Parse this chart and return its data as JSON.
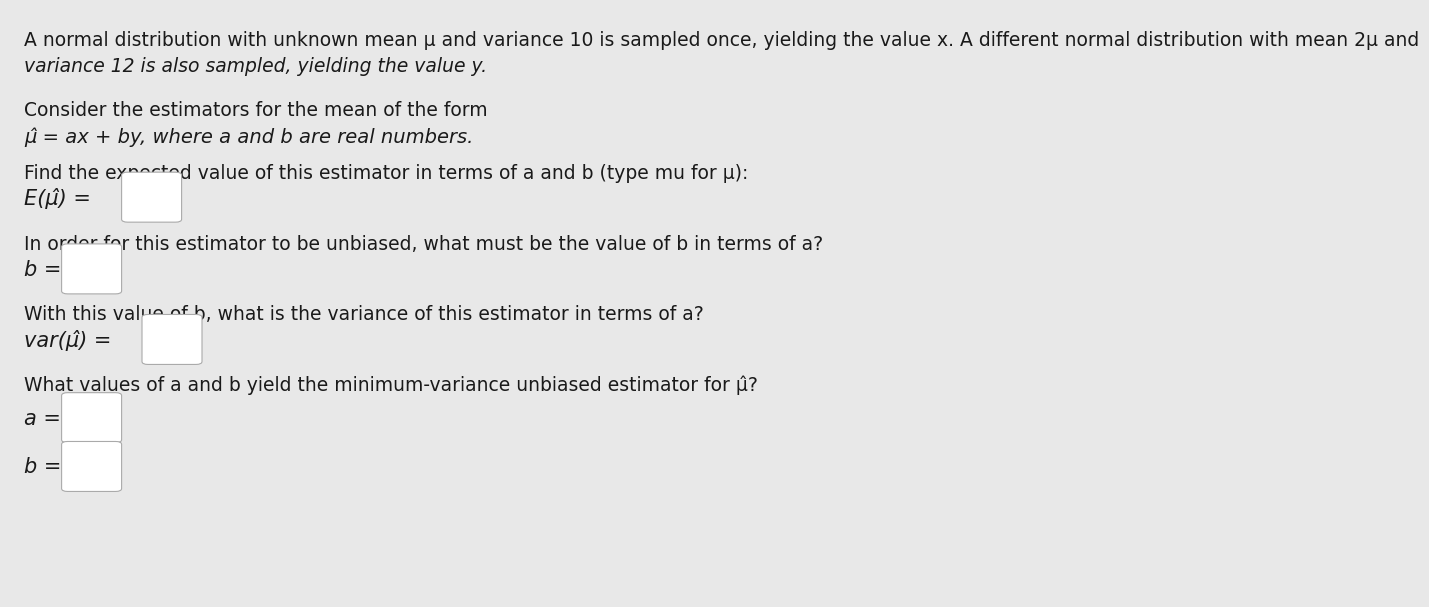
{
  "background_color": "#e8e8e8",
  "text_color": "#1a1a1a",
  "title_line1": "A normal distribution with unknown mean μ and variance 10 is sampled once, yielding the value x. A different normal distribution with mean 2μ and",
  "title_line2": "variance 12 is also sampled, yielding the value y.",
  "para1_line1": "Consider the estimators for the mean of the form",
  "para1_line2": "μ̂ = ax + by, where a and b are real numbers.",
  "para2_line1": "Find the expected value of this estimator in terms of a and b (type mu for μ):",
  "eq1_label": "E(μ̂) =",
  "para3_line1": "In order for this estimator to be unbiased, what must be the value of b in terms of a?",
  "eq2_label": "b =",
  "para4_line1": "With this value of b, what is the variance of this estimator in terms of a?",
  "eq3_label": "var(μ̂) =",
  "para5_line1": "What values of a and b yield the minimum-variance unbiased estimator for μ̂?",
  "eq4_label": "a =",
  "eq5_label": "b ="
}
